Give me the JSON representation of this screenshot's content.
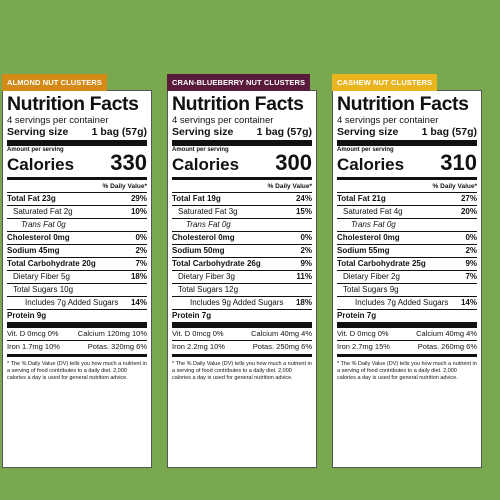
{
  "panels": [
    {
      "tab": "ALMOND NUT CLUSTERS",
      "tab_color": "#d48a16",
      "title": "Nutrition Facts",
      "servings": "4 servings per container",
      "serving_size_label": "Serving size",
      "serving_size_value": "1 bag (57g)",
      "amount_per_serving": "Amount per serving",
      "calories_label": "Calories",
      "calories_value": "330",
      "dv_header": "% Daily Value*",
      "total_fat": "Total Fat 23g",
      "total_fat_dv": "29%",
      "sat_fat": "Saturated Fat 2g",
      "sat_fat_dv": "10%",
      "trans_fat": "Trans Fat 0g",
      "cholesterol": "Cholesterol 0mg",
      "cholesterol_dv": "0%",
      "sodium": "Sodium 45mg",
      "sodium_dv": "2%",
      "carb": "Total Carbohydrate 20g",
      "carb_dv": "7%",
      "fiber": "Dietary Fiber 5g",
      "fiber_dv": "18%",
      "sugars": "Total Sugars 10g",
      "added_sugars": "Includes 7g Added Sugars",
      "added_sugars_dv": "14%",
      "protein": "Protein 9g",
      "vitd": "Vit. D 0mcg 0%",
      "calcium": "Calcium 120mg 10%",
      "iron": "Iron 1.7mg 10%",
      "potas": "Potas. 320mg 6%",
      "footnote": "* The % Daily Value (DV) tells you how much a nutrient in a serving of food contributes to a daily diet. 2,000 calories a day is used for general nutrition advice."
    },
    {
      "tab": "CRAN-BLUEBERRY NUT CLUSTERS",
      "tab_color": "#5a1a3c",
      "title": "Nutrition Facts",
      "servings": "4 servings per container",
      "serving_size_label": "Serving size",
      "serving_size_value": "1 bag (57g)",
      "amount_per_serving": "Amount per serving",
      "calories_label": "Calories",
      "calories_value": "300",
      "dv_header": "% Daily Value*",
      "total_fat": "Total Fat 19g",
      "total_fat_dv": "24%",
      "sat_fat": "Saturated Fat 3g",
      "sat_fat_dv": "15%",
      "trans_fat": "Trans Fat 0g",
      "cholesterol": "Cholesterol 0mg",
      "cholesterol_dv": "0%",
      "sodium": "Sodium 50mg",
      "sodium_dv": "2%",
      "carb": "Total Carbohydrate 26g",
      "carb_dv": "9%",
      "fiber": "Dietary Fiber 3g",
      "fiber_dv": "11%",
      "sugars": "Total Sugars 12g",
      "added_sugars": "Includes 9g Added Sugars",
      "added_sugars_dv": "18%",
      "protein": "Protein 7g",
      "vitd": "Vit. D 0mcg 0%",
      "calcium": "Calcium 40mg 4%",
      "iron": "Iron 2.2mg 10%",
      "potas": "Potas. 250mg 6%",
      "footnote": "* The % Daily Value (DV) tells you how much a nutrient in a serving of food contributes to a daily diet. 2,000 calories a day is used for general nutrition advice."
    },
    {
      "tab": "CASHEW NUT CLUSTERS",
      "tab_color": "#e9b51f",
      "title": "Nutrition Facts",
      "servings": "4 servings per container",
      "serving_size_label": "Serving size",
      "serving_size_value": "1 bag (57g)",
      "amount_per_serving": "Amount per serving",
      "calories_label": "Calories",
      "calories_value": "310",
      "dv_header": "% Daily Value*",
      "total_fat": "Total Fat 21g",
      "total_fat_dv": "27%",
      "sat_fat": "Saturated Fat 4g",
      "sat_fat_dv": "20%",
      "trans_fat": "Trans Fat 0g",
      "cholesterol": "Cholesterol 0mg",
      "cholesterol_dv": "0%",
      "sodium": "Sodium 55mg",
      "sodium_dv": "2%",
      "carb": "Total Carbohydrate 25g",
      "carb_dv": "9%",
      "fiber": "Dietary Fiber 2g",
      "fiber_dv": "7%",
      "sugars": "Total Sugars 9g",
      "added_sugars": "Includes 7g Added Sugars",
      "added_sugars_dv": "14%",
      "protein": "Protein 7g",
      "vitd": "Vit. D 0mcg 0%",
      "calcium": "Calcium 40mg 4%",
      "iron": "Iron 2.7mg 15%",
      "potas": "Potas. 260mg 6%",
      "footnote": "* The % Daily Value (DV) tells you how much a nutrient in a serving of food contributes to a daily diet. 2,000 calories a day is used for general nutrition advice."
    }
  ],
  "background_color": "#7aa84f"
}
